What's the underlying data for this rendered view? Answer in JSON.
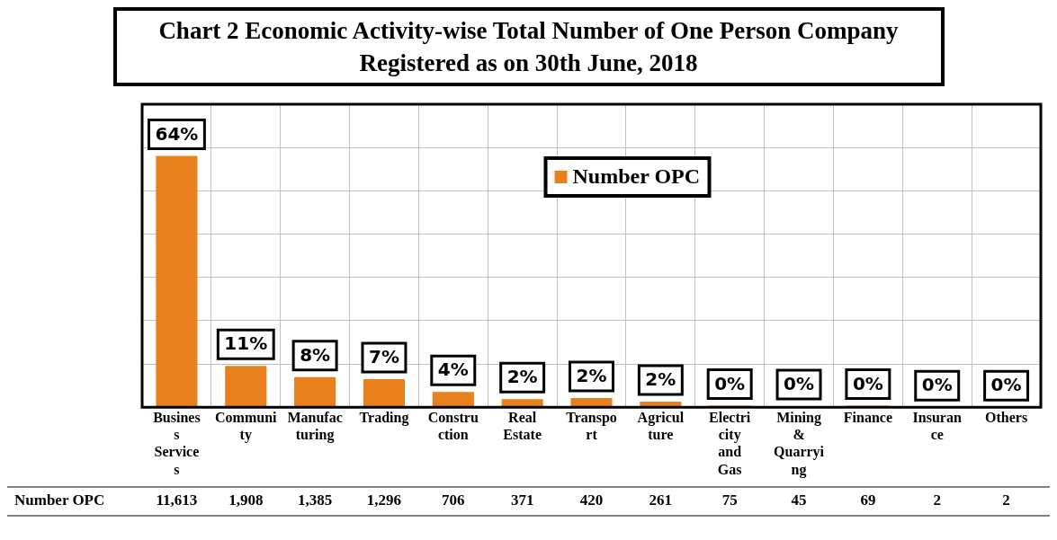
{
  "chart_data": {
    "type": "bar",
    "title": "Chart 2 Economic Activity-wise Total Number of One Person Company Registered as on 30th June, 2018",
    "categories": [
      "Business Services",
      "Community",
      "Manufacturing",
      "Trading",
      "Construction",
      "Real Estate",
      "Transport",
      "Agriculture",
      "Electricity and Gas",
      "Mining & Quarrying",
      "Finance",
      "Insurance",
      "Others"
    ],
    "series": [
      {
        "name": "Number OPC",
        "color": "#e8801e",
        "values": [
          11613,
          1908,
          1385,
          1296,
          706,
          371,
          420,
          261,
          75,
          45,
          69,
          2,
          2
        ],
        "value_labels": [
          "11,613",
          "1,908",
          "1,385",
          "1,296",
          "706",
          "371",
          "420",
          "261",
          "75",
          "45",
          "69",
          "2",
          "2"
        ]
      }
    ],
    "annotations": [
      {
        "text": "64%",
        "x": "Business Services",
        "y": 11613
      },
      {
        "text": "11%",
        "x": "Community",
        "y": 1908
      },
      {
        "text": "8%",
        "x": "Manufacturing",
        "y": 1385
      },
      {
        "text": "7%",
        "x": "Trading",
        "y": 1296
      },
      {
        "text": "4%",
        "x": "Construction",
        "y": 706
      },
      {
        "text": "2%",
        "x": "Real Estate",
        "y": 371
      },
      {
        "text": "2%",
        "x": "Transport",
        "y": 420
      },
      {
        "text": "2%",
        "x": "Agriculture",
        "y": 261
      },
      {
        "text": "0%",
        "x": "Electricity and Gas",
        "y": 75
      },
      {
        "text": "0%",
        "x": "Mining & Quarrying",
        "y": 45
      },
      {
        "text": "0%",
        "x": "Finance",
        "y": 69
      },
      {
        "text": "0%",
        "x": "Insurance",
        "y": 2
      },
      {
        "text": "0%",
        "x": "Others",
        "y": 2
      }
    ],
    "tick_labels": "x",
    "grid": true,
    "legend": "top"
  }
}
